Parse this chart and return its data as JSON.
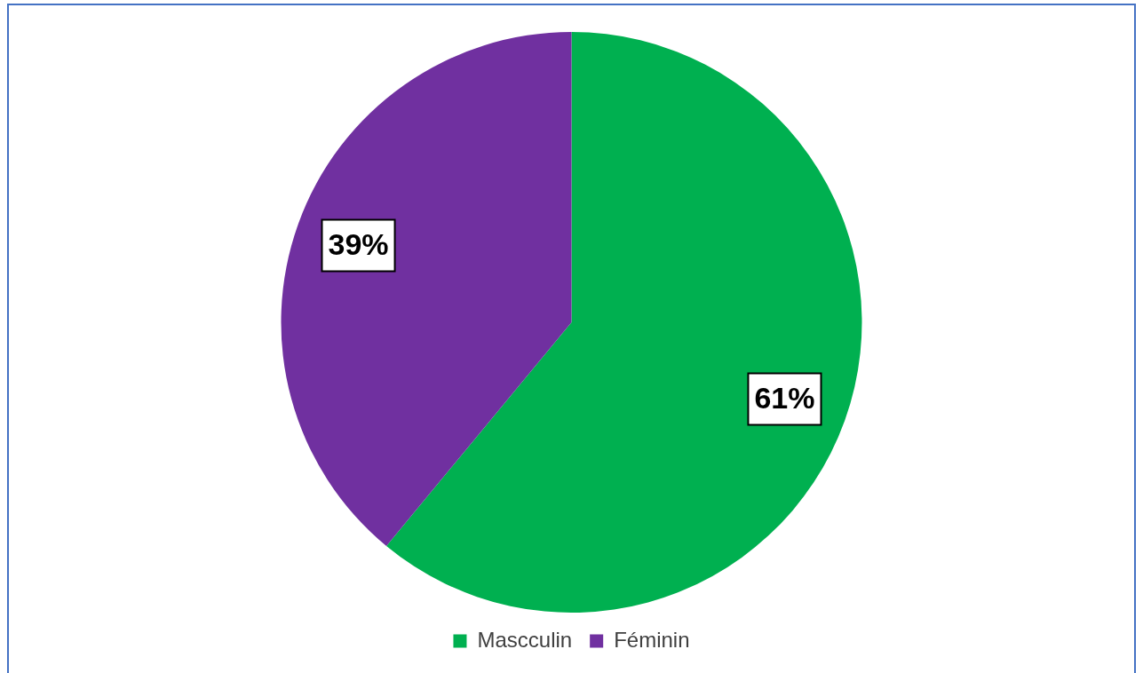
{
  "chart_data": {
    "type": "pie",
    "categories": [
      "Mascculin",
      "Féminin"
    ],
    "values": [
      61,
      39
    ],
    "colors": [
      "#00b050",
      "#7030a0"
    ],
    "value_labels": [
      "61%",
      "39%"
    ],
    "legend": "bottom"
  }
}
